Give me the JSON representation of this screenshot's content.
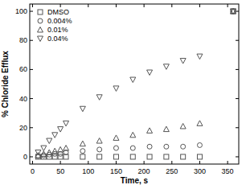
{
  "chart_data": {
    "type": "scatter",
    "x_label": "Time, s",
    "y_label": "% Chloride Efflux",
    "x": [
      10,
      20,
      30,
      40,
      50,
      60,
      90,
      120,
      150,
      180,
      210,
      240,
      270,
      300,
      360
    ],
    "series": [
      {
        "name": "DMSO",
        "color": "#555555",
        "marker": "square",
        "values": [
          0,
          0,
          0,
          0,
          0,
          0,
          0,
          0,
          0,
          0,
          0,
          0,
          0,
          0,
          100
        ]
      },
      {
        "name": "0.004%",
        "color": "#555555",
        "marker": "circle",
        "values": [
          0.5,
          1,
          1.5,
          2,
          2,
          3,
          4,
          5,
          6,
          6,
          7,
          7,
          7,
          8,
          100
        ]
      },
      {
        "name": "0.01%",
        "color": "#555555",
        "marker": "triangle-up",
        "values": [
          1,
          2,
          3,
          4,
          5,
          6,
          9,
          11,
          13,
          15,
          18,
          19,
          21,
          23,
          100
        ]
      },
      {
        "name": "0.04%",
        "color": "#555555",
        "marker": "triangle-down",
        "values": [
          3,
          6,
          11,
          15,
          19,
          23,
          33,
          41,
          47,
          53,
          58,
          62,
          66,
          69,
          100
        ]
      }
    ],
    "xlim": [
      -5,
      370
    ],
    "xticks": [
      0,
      50,
      100,
      150,
      200,
      250,
      300,
      350
    ],
    "ylim": [
      -5,
      105
    ],
    "yticks": [
      0,
      20,
      40,
      60,
      80,
      100
    ],
    "legend": "top-left",
    "grid": false
  }
}
